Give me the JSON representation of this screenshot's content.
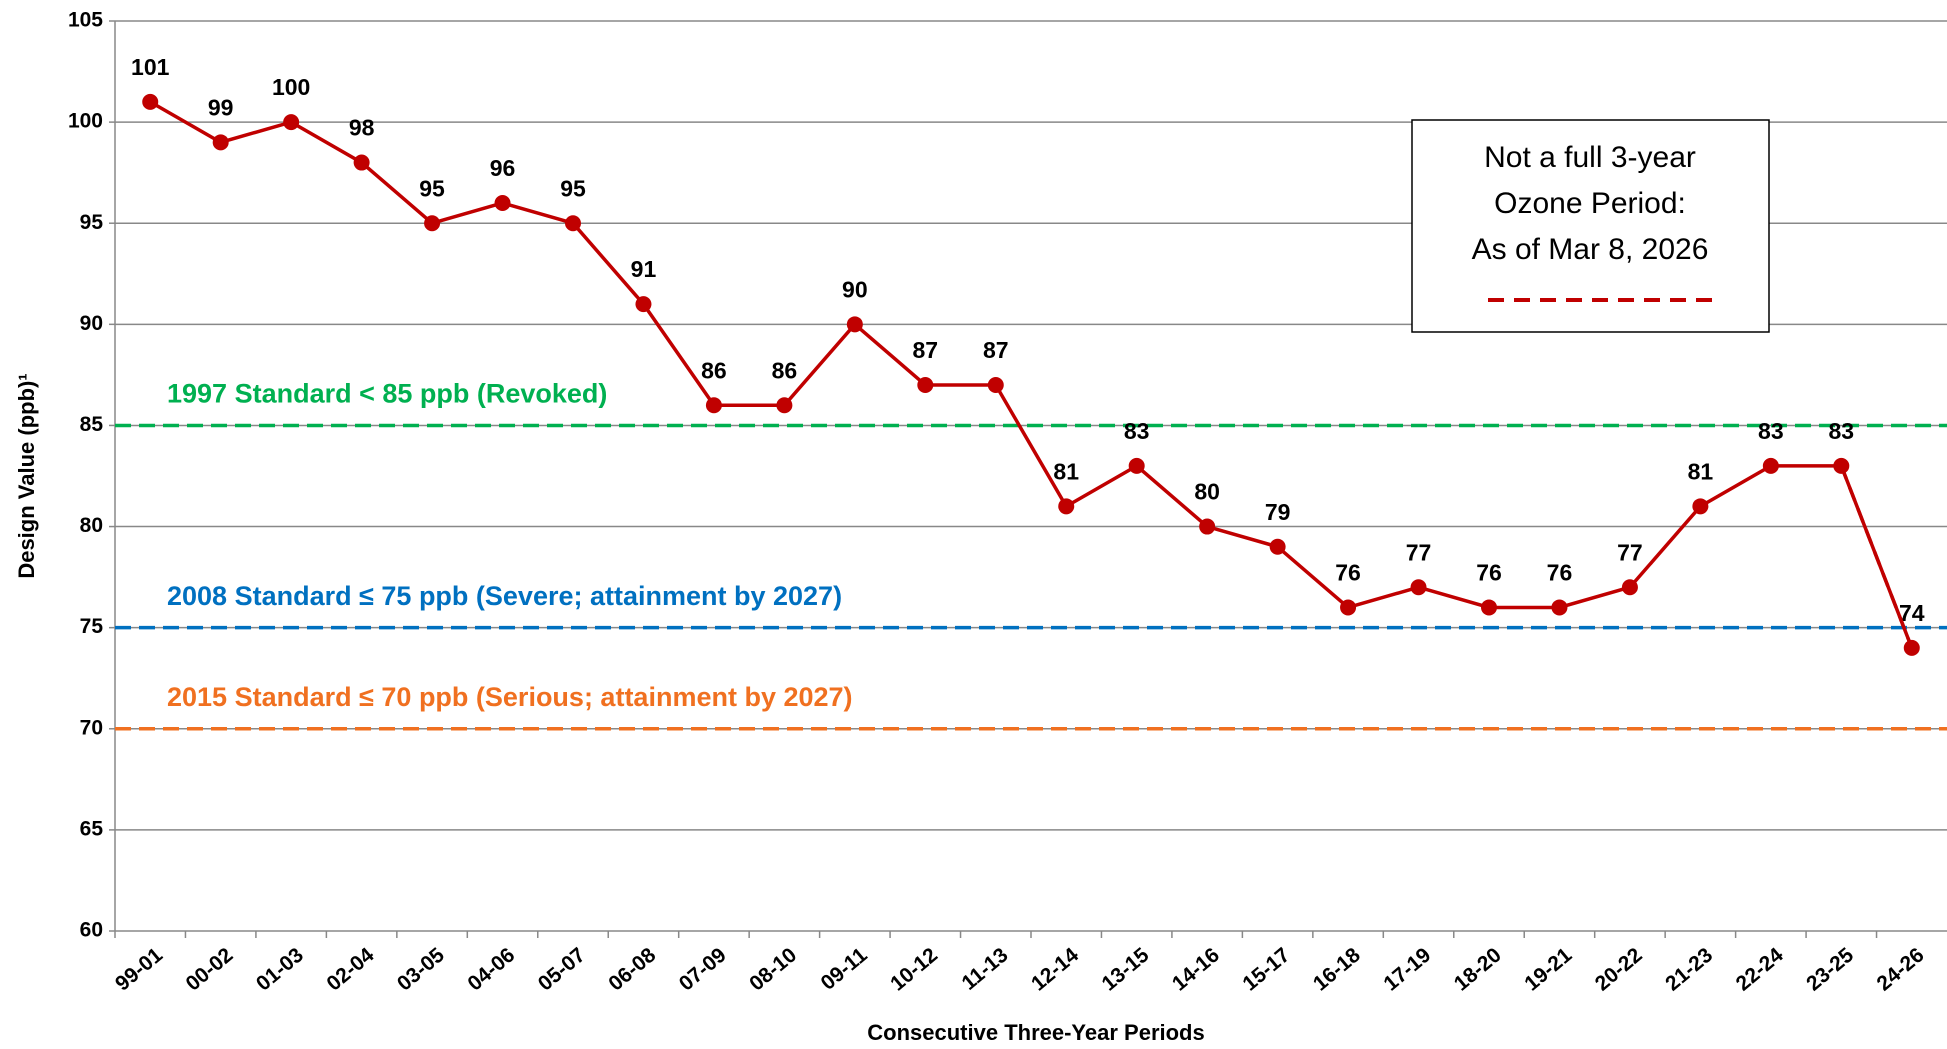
{
  "chart_data": {
    "type": "line",
    "y_label": "Design Value (ppb)¹",
    "x_label": "Consecutive Three-Year Periods",
    "categories": [
      "99-01",
      "00-02",
      "01-03",
      "02-04",
      "03-05",
      "04-06",
      "05-07",
      "06-08",
      "07-09",
      "08-10",
      "09-11",
      "10-12",
      "11-13",
      "12-14",
      "13-15",
      "14-16",
      "15-17",
      "16-18",
      "17-19",
      "18-20",
      "19-21",
      "20-22",
      "21-23",
      "22-24",
      "23-25",
      "24-26"
    ],
    "series": [
      {
        "color": "#c00000",
        "dashed": false,
        "values": [
          101,
          99,
          100,
          98,
          95,
          96,
          95,
          91,
          86,
          86,
          90,
          87,
          87,
          81,
          83,
          80,
          79,
          76,
          77,
          76,
          76,
          77,
          81,
          83,
          83,
          74
        ]
      },
      {
        "color": "#c00000",
        "dashed": true,
        "values": [
          null,
          null,
          null,
          null,
          null,
          null,
          null,
          null,
          null,
          null,
          null,
          null,
          null,
          null,
          null,
          null,
          null,
          null,
          null,
          null,
          null,
          null,
          null,
          null,
          83,
          74
        ]
      }
    ],
    "reference_lines": [
      {
        "value": 85,
        "label": "1997 Standard < 85 ppb (Revoked)",
        "color": "#00b050"
      },
      {
        "value": 75,
        "label": "2008 Standard ≤ 75 ppb (Severe; attainment by 2027)",
        "color": "#0070c0"
      },
      {
        "value": 70,
        "label": "2015 Standard ≤ 70 ppb (Serious; attainment by 2027)",
        "color": "#f07020"
      }
    ],
    "legend_box": [
      "Not a full 3-year",
      "Ozone Period:",
      "As of Mar 8, 2026"
    ],
    "ylim": [
      60,
      105
    ],
    "yticks": [
      60,
      65,
      70,
      75,
      80,
      85,
      90,
      95,
      100,
      105
    ],
    "grid": true
  }
}
